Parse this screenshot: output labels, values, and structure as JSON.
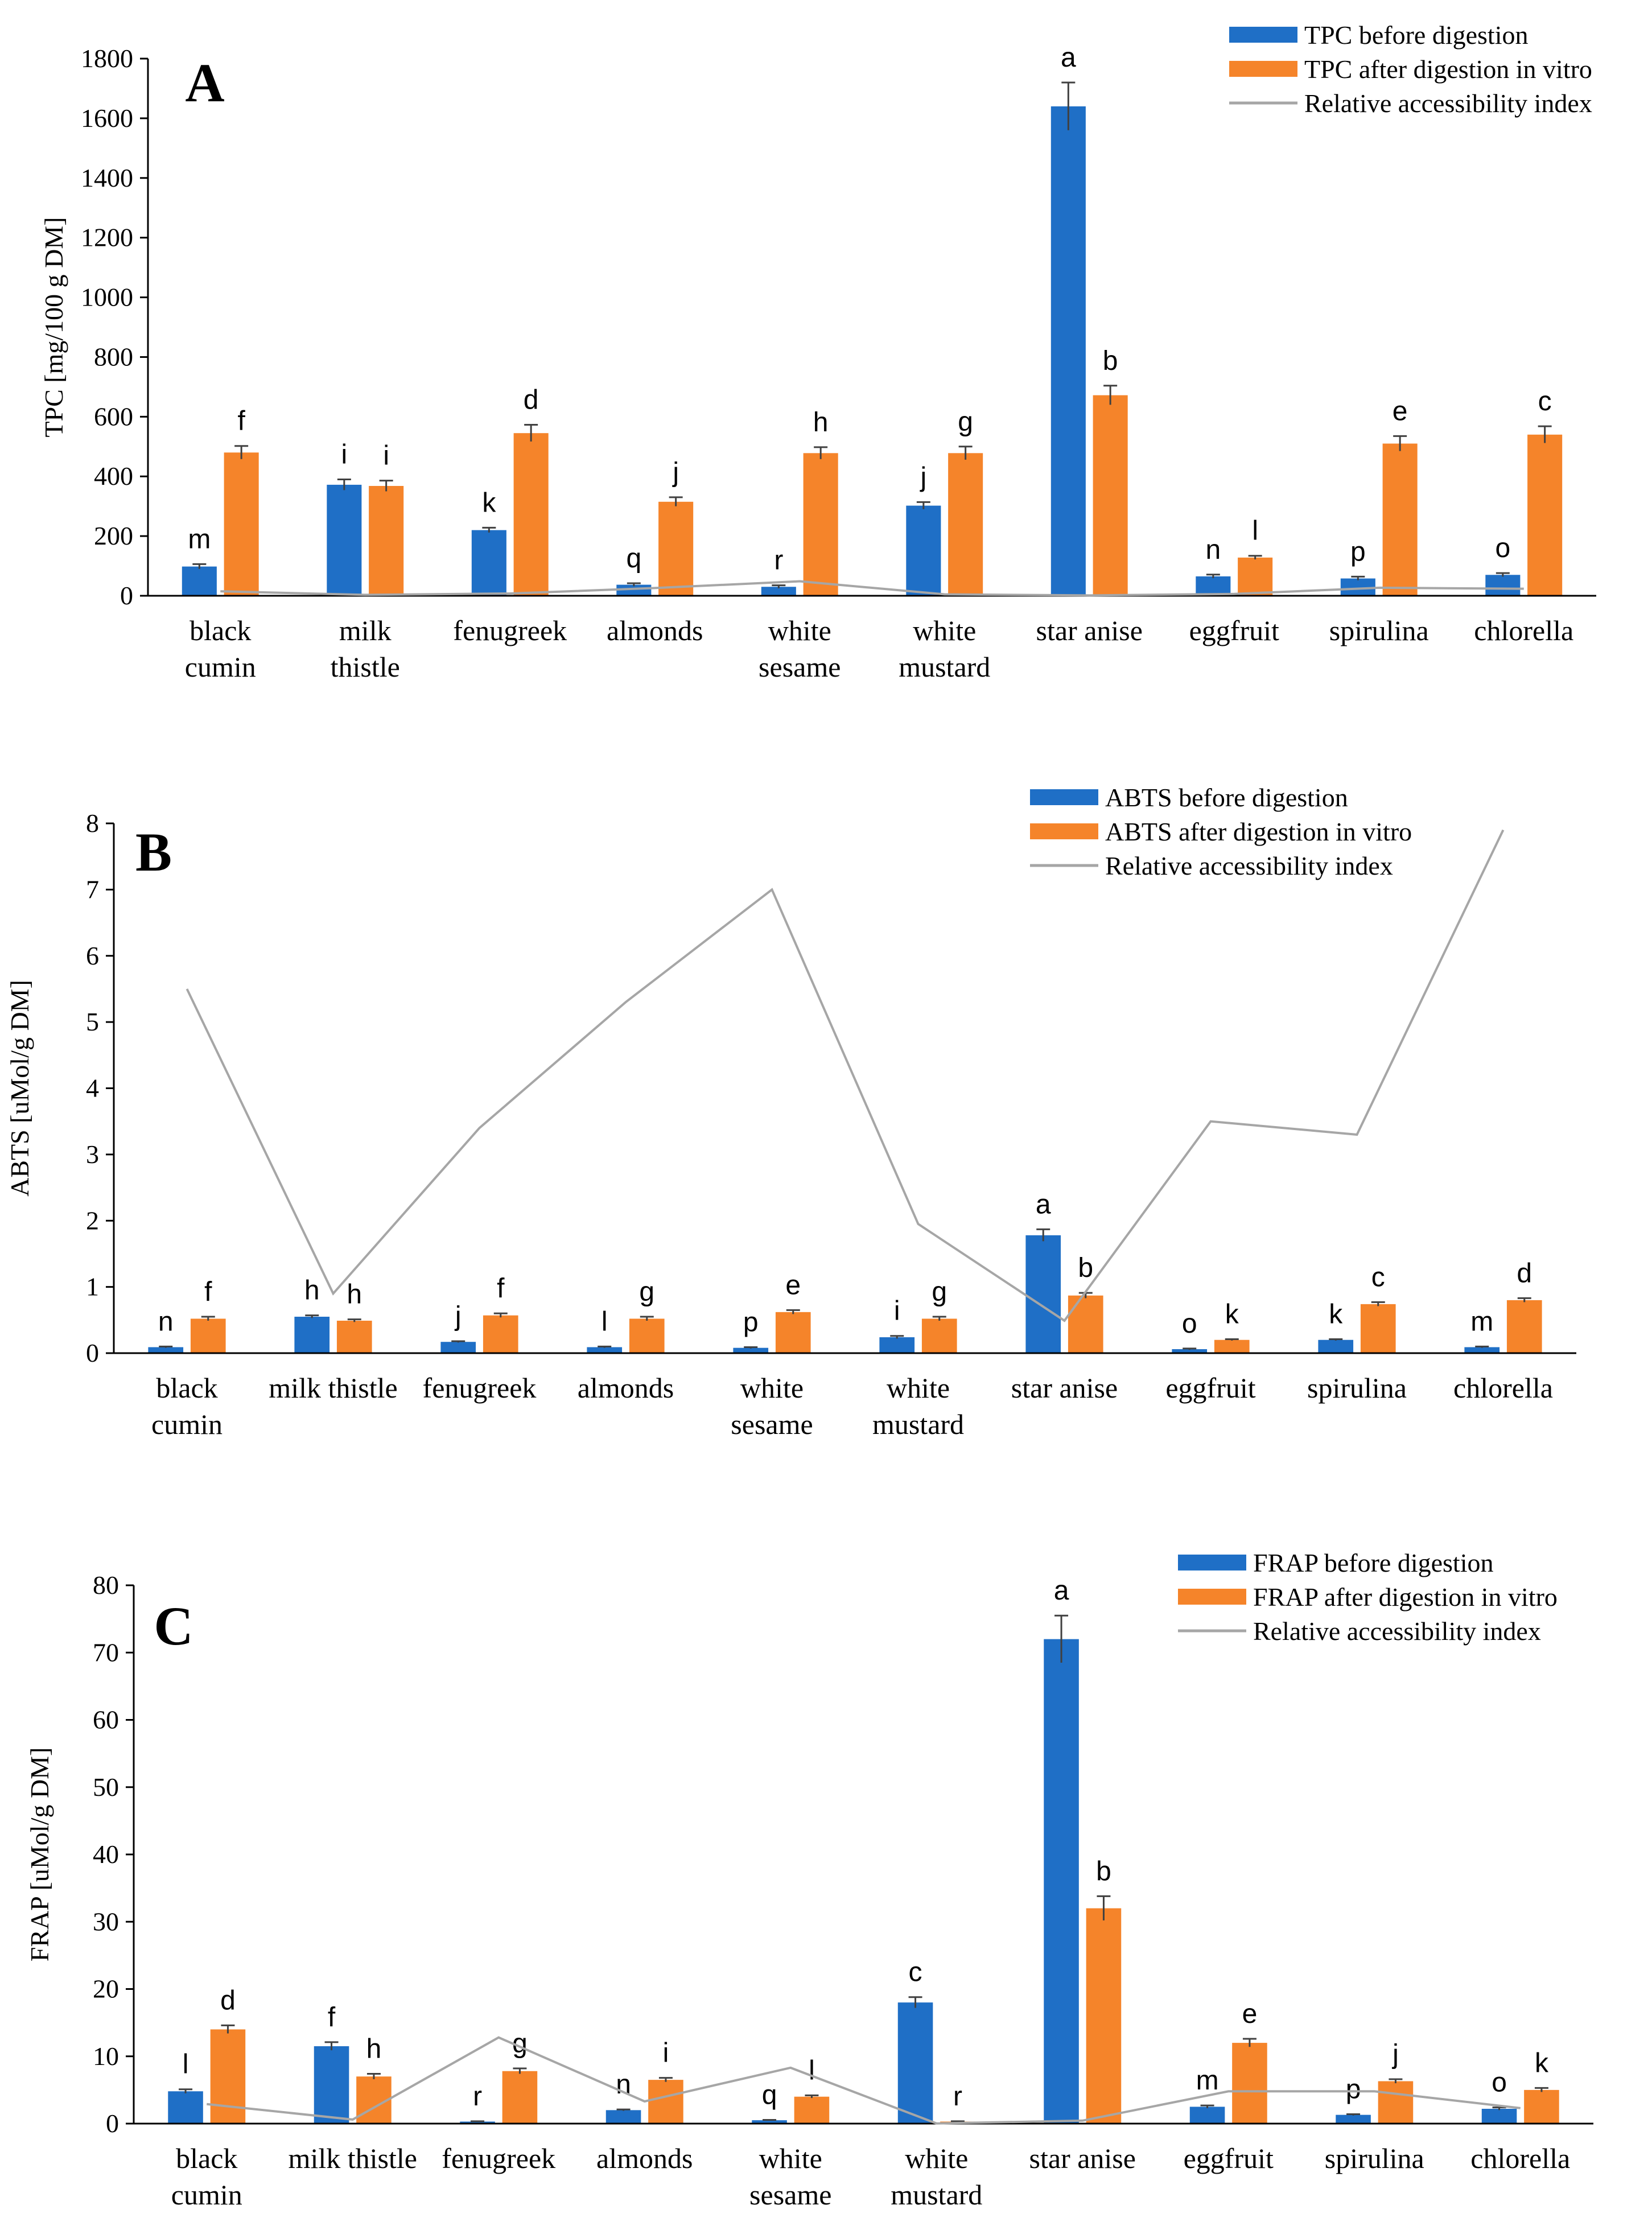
{
  "chart_data": [
    {
      "type": "bar",
      "panel_label": "A",
      "ylabel": "TPC [mg/100 g DM]",
      "ylim": [
        0,
        1800
      ],
      "yticks": [
        "0",
        "200",
        "400",
        "600",
        "800",
        "1000",
        "1200",
        "1400",
        "1600",
        "1800"
      ],
      "categories": [
        [
          "black",
          "cumin"
        ],
        [
          "milk",
          "thistle"
        ],
        [
          "fenugreek"
        ],
        [
          "almonds"
        ],
        [
          "white",
          "sesame"
        ],
        [
          "white",
          "mustard"
        ],
        [
          "star anise"
        ],
        [
          "eggfruit"
        ],
        [
          "spirulina"
        ],
        [
          "chlorella"
        ]
      ],
      "series": [
        {
          "name": "TPC before digestion",
          "color": "#1F6FC6",
          "values": [
            98,
            372,
            220,
            37,
            30,
            302,
            1640,
            65,
            58,
            70
          ],
          "errors": [
            8,
            18,
            8,
            5,
            5,
            12,
            80,
            6,
            6,
            6
          ],
          "letters": [
            "m",
            "i",
            "k",
            "q",
            "r",
            "j",
            "a",
            "n",
            "p",
            "o"
          ]
        },
        {
          "name": "TPC after digestion in vitro",
          "color": "#F5842A",
          "values": [
            480,
            368,
            545,
            315,
            478,
            478,
            672,
            128,
            510,
            540
          ],
          "errors": [
            22,
            18,
            28,
            15,
            20,
            22,
            32,
            6,
            25,
            28
          ],
          "letters": [
            "f",
            "i",
            "d",
            "j",
            "h",
            "g",
            "b",
            "l",
            "e",
            "c"
          ]
        }
      ],
      "line": {
        "name": "Relative accessibility index",
        "color": "#A6A6A6",
        "values": [
          4.9,
          1.0,
          2.5,
          8.5,
          15.9,
          1.6,
          0.41,
          2.0,
          8.8,
          7.7
        ]
      }
    },
    {
      "type": "bar",
      "panel_label": "B",
      "ylabel": "ABTS [uMol/g DM]",
      "ylim": [
        0,
        8
      ],
      "yticks": [
        "0",
        "1",
        "2",
        "3",
        "4",
        "5",
        "6",
        "7",
        "8"
      ],
      "categories": [
        [
          "black",
          "cumin"
        ],
        [
          "milk thistle"
        ],
        [
          "fenugreek"
        ],
        [
          "almonds"
        ],
        [
          "white",
          "sesame"
        ],
        [
          "white",
          "mustard"
        ],
        [
          "star anise"
        ],
        [
          "eggfruit"
        ],
        [
          "spirulina"
        ],
        [
          "chlorella"
        ]
      ],
      "series": [
        {
          "name": "ABTS before digestion",
          "color": "#1F6FC6",
          "values": [
            0.09,
            0.55,
            0.17,
            0.09,
            0.08,
            0.24,
            1.78,
            0.06,
            0.2,
            0.09
          ],
          "errors": [
            0.01,
            0.02,
            0.01,
            0.01,
            0.01,
            0.02,
            0.09,
            0.01,
            0.01,
            0.01
          ],
          "letters": [
            "n",
            "h",
            "j",
            "l",
            "p",
            "i",
            "a",
            "o",
            "k",
            "m"
          ]
        },
        {
          "name": "ABTS after digestion in vitro",
          "color": "#F5842A",
          "values": [
            0.52,
            0.49,
            0.57,
            0.52,
            0.62,
            0.52,
            0.87,
            0.2,
            0.74,
            0.8
          ],
          "errors": [
            0.03,
            0.02,
            0.03,
            0.03,
            0.03,
            0.03,
            0.04,
            0.01,
            0.03,
            0.03
          ],
          "letters": [
            "f",
            "h",
            "f",
            "g",
            "e",
            "g",
            "b",
            "k",
            "c",
            "d"
          ]
        }
      ],
      "line": {
        "name": "Relative accessibility index",
        "color": "#A6A6A6",
        "values": [
          5.5,
          0.9,
          3.4,
          5.3,
          7.0,
          1.95,
          0.49,
          3.5,
          3.3,
          7.9
        ]
      }
    },
    {
      "type": "bar",
      "panel_label": "C",
      "ylabel": "FRAP [uMol/g DM]",
      "ylim": [
        0,
        80
      ],
      "yticks": [
        "0",
        "10",
        "20",
        "30",
        "40",
        "50",
        "60",
        "70",
        "80"
      ],
      "categories": [
        [
          "black",
          "cumin"
        ],
        [
          "milk thistle"
        ],
        [
          "fenugreek"
        ],
        [
          "almonds"
        ],
        [
          "white",
          "sesame"
        ],
        [
          "white",
          "mustard"
        ],
        [
          "star anise"
        ],
        [
          "eggfruit"
        ],
        [
          "spirulina"
        ],
        [
          "chlorella"
        ]
      ],
      "series": [
        {
          "name": "FRAP before digestion",
          "color": "#1F6FC6",
          "values": [
            4.8,
            11.5,
            0.3,
            2.0,
            0.5,
            18.0,
            72.0,
            2.5,
            1.3,
            2.2
          ],
          "errors": [
            0.3,
            0.6,
            0.05,
            0.1,
            0.05,
            0.8,
            3.5,
            0.2,
            0.1,
            0.2
          ],
          "letters": [
            "l",
            "f",
            "r",
            "n",
            "q",
            "c",
            "a",
            "m",
            "p",
            "o"
          ]
        },
        {
          "name": "FRAP after digestion in vitro",
          "color": "#F5842A",
          "values": [
            14.0,
            7.0,
            7.8,
            6.5,
            4.0,
            0.3,
            32.0,
            12.0,
            6.3,
            5.0
          ],
          "errors": [
            0.6,
            0.4,
            0.4,
            0.3,
            0.2,
            0.05,
            1.8,
            0.6,
            0.3,
            0.3
          ],
          "letters": [
            "d",
            "h",
            "g",
            "i",
            "l",
            "r",
            "b",
            "e",
            "j",
            "k"
          ]
        }
      ],
      "line": {
        "name": "Relative accessibility index",
        "color": "#A6A6A6",
        "values": [
          2.9,
          0.6,
          12.8,
          3.3,
          8.3,
          0.02,
          0.44,
          4.8,
          4.8,
          2.3
        ]
      }
    }
  ]
}
